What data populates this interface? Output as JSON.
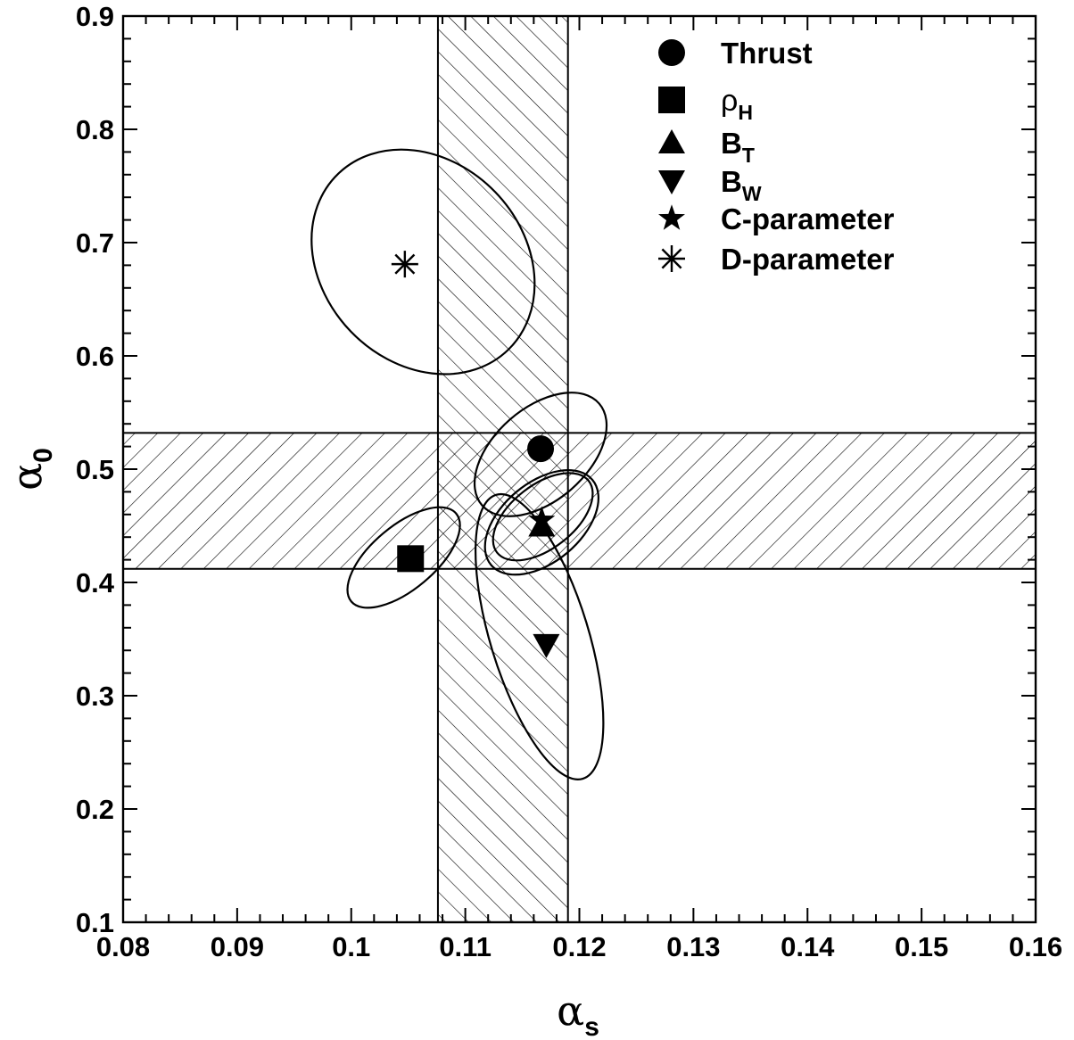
{
  "chart_data": {
    "type": "scatter",
    "xlim": [
      0.08,
      0.16
    ],
    "ylim": [
      0.1,
      0.9
    ],
    "x_ticks": [
      "0.08",
      "0.09",
      "0.1",
      "0.11",
      "0.12",
      "0.13",
      "0.14",
      "0.15",
      "0.16"
    ],
    "y_ticks": [
      "0.1",
      "0.2",
      "0.3",
      "0.4",
      "0.5",
      "0.6",
      "0.7",
      "0.8",
      "0.9"
    ],
    "xlabel": {
      "symbol": "α",
      "sub": "s"
    },
    "ylabel": {
      "symbol": "α",
      "sub": "0"
    },
    "grid": false,
    "legend_position": "top-right",
    "bands": [
      {
        "axis": "x",
        "range": [
          0.1076,
          0.119
        ],
        "hatch": "diagonal-up"
      },
      {
        "axis": "y",
        "range": [
          0.412,
          0.532
        ],
        "hatch": "diagonal-down"
      }
    ],
    "series": [
      {
        "name": "Thrust",
        "label_main": "Thrust",
        "label_sub": "",
        "marker": "circle",
        "x": 0.1166,
        "y": 0.518,
        "ellipse": {
          "cx": 0.1166,
          "cy": 0.513,
          "rx": 0.0068,
          "ry": 0.041,
          "angle_deg": -41
        }
      },
      {
        "name": "ρH",
        "label_main": "ρ",
        "label_sub": "H",
        "marker": "square",
        "x": 0.1052,
        "y": 0.421,
        "ellipse": {
          "cx": 0.1046,
          "cy": 0.422,
          "rx": 0.006,
          "ry": 0.028,
          "angle_deg": -40
        }
      },
      {
        "name": "BT",
        "label_main": "B",
        "label_sub": "T",
        "marker": "triangle-up",
        "x": 0.1167,
        "y": 0.45,
        "ellipse": {
          "cx": 0.1168,
          "cy": 0.458,
          "rx": 0.0051,
          "ry": 0.028,
          "angle_deg": -38
        }
      },
      {
        "name": "BW",
        "label_main": "B",
        "label_sub": "W",
        "marker": "triangle-down",
        "x": 0.1171,
        "y": 0.345,
        "ellipse": {
          "cx": 0.1165,
          "cy": 0.352,
          "rx": 0.0043,
          "ry": 0.131,
          "angle_deg": -17
        }
      },
      {
        "name": "C-parameter",
        "label_main": "C-parameter",
        "label_sub": "",
        "marker": "star",
        "x": 0.1167,
        "y": 0.455,
        "ellipse": {
          "cx": 0.1167,
          "cy": 0.453,
          "rx": 0.0058,
          "ry": 0.035,
          "angle_deg": -40
        }
      },
      {
        "name": "D-parameter",
        "label_main": "D-parameter",
        "label_sub": "",
        "marker": "asterisk",
        "x": 0.1047,
        "y": 0.681,
        "ellipse": {
          "cx": 0.1063,
          "cy": 0.683,
          "rx": 0.0088,
          "ry": 0.108,
          "angle_deg": -44
        }
      }
    ]
  }
}
